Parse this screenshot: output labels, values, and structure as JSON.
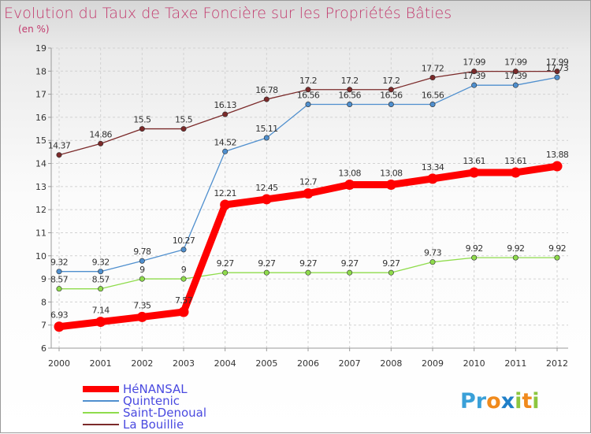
{
  "chart_data": {
    "type": "line",
    "title": "Evolution du Taux de Taxe Foncière sur les Propriétés Bâties",
    "subtitle": "(en %)",
    "xlabel": "",
    "ylabel": "",
    "ylim": [
      6,
      19
    ],
    "y_ticks": [
      "6",
      "7",
      "8",
      "9",
      "10",
      "11",
      "12",
      "13",
      "14",
      "15",
      "16",
      "17",
      "18",
      "19"
    ],
    "categories": [
      "2000",
      "2001",
      "2002",
      "2003",
      "2004",
      "2005",
      "2006",
      "2007",
      "2008",
      "2009",
      "2010",
      "2011",
      "2012"
    ],
    "grid": true,
    "legend_position": "bottom-left",
    "series": [
      {
        "name": "HéNANSAL",
        "color": "#ff0000",
        "values": [
          6.93,
          7.14,
          7.35,
          7.57,
          12.21,
          12.45,
          12.7,
          13.08,
          13.08,
          13.34,
          13.61,
          13.61,
          13.88
        ],
        "labels": [
          "6.93",
          "7.14",
          "7.35",
          "7.57",
          "12.21",
          "12.45",
          "12.7",
          "13.08",
          "13.08",
          "13.34",
          "13.61",
          "13.61",
          "13.88"
        ]
      },
      {
        "name": "Quintenic",
        "color": "#4f8fce",
        "values": [
          9.32,
          9.32,
          9.78,
          10.27,
          14.52,
          15.11,
          16.56,
          16.56,
          16.56,
          16.56,
          17.39,
          17.39,
          17.73
        ],
        "labels": [
          "9.32",
          "9.32",
          "9.78",
          "10.27",
          "14.52",
          "15.11",
          "16.56",
          "16.56",
          "16.56",
          "16.56",
          "17.39",
          "17.39",
          "17.73"
        ]
      },
      {
        "name": "Saint-Denoual",
        "color": "#8fdc4c",
        "values": [
          8.57,
          8.57,
          9,
          9,
          9.27,
          9.27,
          9.27,
          9.27,
          9.27,
          9.73,
          9.92,
          9.92,
          9.92
        ],
        "labels": [
          "8.57",
          "8.57",
          "9",
          "9",
          "9.27",
          "9.27",
          "9.27",
          "9.27",
          "9.27",
          "9.73",
          "9.92",
          "9.92",
          "9.92"
        ]
      },
      {
        "name": "La Bouillie",
        "color": "#7b2a2a",
        "values": [
          14.37,
          14.86,
          15.5,
          15.5,
          16.13,
          16.78,
          17.2,
          17.2,
          17.2,
          17.72,
          17.99,
          17.99,
          17.99
        ],
        "labels": [
          "14.37",
          "14.86",
          "15.5",
          "15.5",
          "16.13",
          "16.78",
          "17.2",
          "17.2",
          "17.2",
          "17.72",
          "17.99",
          "17.99",
          "17.99"
        ]
      }
    ]
  },
  "logo": {
    "letters": [
      "P",
      "r",
      "o",
      "x",
      "i",
      "t",
      "i"
    ],
    "colors": [
      "#3aa0d8",
      "#3aa0d8",
      "#f08a1c",
      "#1f7fc8",
      "#8cc63f",
      "#f08a1c",
      "#8cc63f"
    ]
  }
}
